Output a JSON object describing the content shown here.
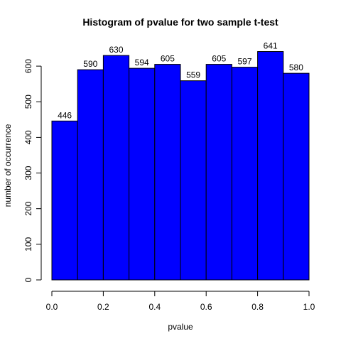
{
  "chart_data": {
    "type": "bar",
    "title": "Histogram of pvalue for two sample t-test",
    "xlabel": "pvalue",
    "ylabel": "number of occurrence",
    "bins": [
      {
        "from": 0.0,
        "to": 0.1,
        "value": 446,
        "label": "446"
      },
      {
        "from": 0.1,
        "to": 0.2,
        "value": 590,
        "label": "590"
      },
      {
        "from": 0.2,
        "to": 0.3,
        "value": 630,
        "label": "630"
      },
      {
        "from": 0.3,
        "to": 0.4,
        "value": 594,
        "label": "594"
      },
      {
        "from": 0.4,
        "to": 0.5,
        "value": 605,
        "label": "605"
      },
      {
        "from": 0.5,
        "to": 0.6,
        "value": 559,
        "label": "559"
      },
      {
        "from": 0.6,
        "to": 0.7,
        "value": 605,
        "label": "605"
      },
      {
        "from": 0.7,
        "to": 0.8,
        "value": 597,
        "label": "597"
      },
      {
        "from": 0.8,
        "to": 0.9,
        "value": 641,
        "label": "641"
      },
      {
        "from": 0.9,
        "to": 1.0,
        "value": 580,
        "label": "580"
      }
    ],
    "xlim": [
      0,
      1
    ],
    "ylim": [
      0,
      600
    ],
    "x_ticks": [
      {
        "value": 0.0,
        "label": "0.0"
      },
      {
        "value": 0.2,
        "label": "0.2"
      },
      {
        "value": 0.4,
        "label": "0.4"
      },
      {
        "value": 0.6,
        "label": "0.6"
      },
      {
        "value": 0.8,
        "label": "0.8"
      },
      {
        "value": 1.0,
        "label": "1.0"
      }
    ],
    "y_ticks": [
      {
        "value": 0,
        "label": "0"
      },
      {
        "value": 100,
        "label": "100"
      },
      {
        "value": 200,
        "label": "200"
      },
      {
        "value": 300,
        "label": "300"
      },
      {
        "value": 400,
        "label": "400"
      },
      {
        "value": 500,
        "label": "500"
      },
      {
        "value": 600,
        "label": "600"
      }
    ],
    "bar_color": "#0000ff",
    "bar_edge_color": "#000000",
    "grid": false,
    "legend": "none"
  }
}
